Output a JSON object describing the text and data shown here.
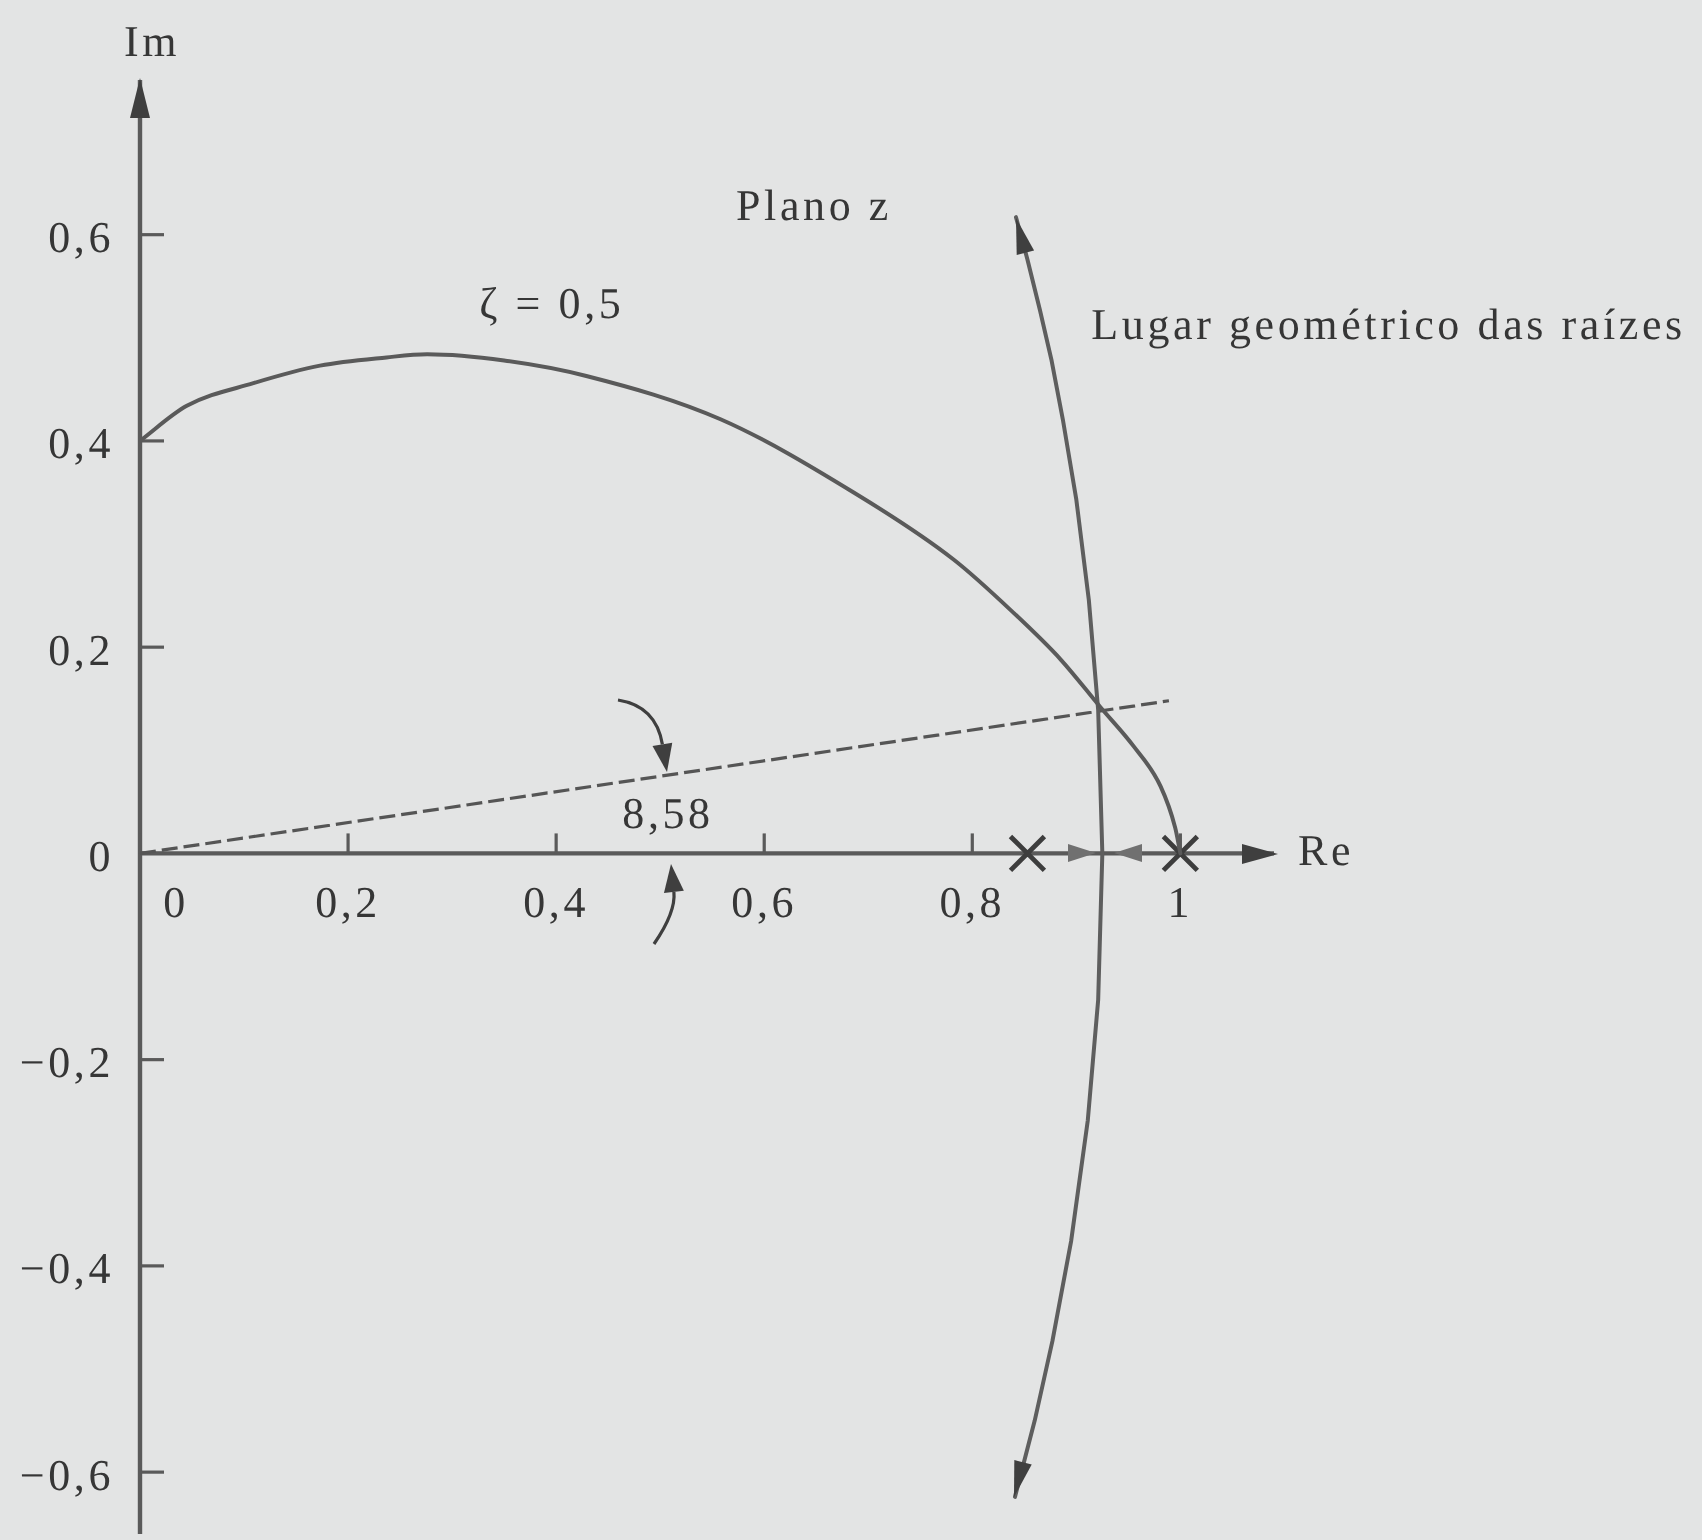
{
  "chart_data": {
    "type": "line",
    "xlabel": "Re",
    "ylabel": "Im",
    "xlim": [
      0,
      1.09
    ],
    "ylim": [
      -0.66,
      0.75
    ],
    "xticks": [
      0,
      {
        "value": 0.2,
        "label": "0,2"
      },
      {
        "value": 0.4,
        "label": "0,4"
      },
      {
        "value": 0.6,
        "label": "0,6"
      },
      {
        "value": 0.8,
        "label": "0,8"
      },
      1
    ],
    "yticks": [
      {
        "value": -0.6,
        "label": "−0,6"
      },
      {
        "value": -0.4,
        "label": "−0,4"
      },
      {
        "value": -0.2,
        "label": "−0,2"
      },
      0,
      {
        "value": 0.2,
        "label": "0,2"
      },
      {
        "value": 0.4,
        "label": "0,4"
      },
      {
        "value": 0.6,
        "label": "0,6"
      }
    ],
    "series": [
      {
        "name": "ζ = 0,5",
        "color": "#5a5a5a",
        "x": [
          0,
          0.045,
          0.109,
          0.173,
          0.237,
          0.276,
          0.35,
          0.429,
          0.558,
          0.686,
          0.782,
          0.84,
          0.885,
          0.923,
          0.955,
          0.981,
          0.995,
          1.0
        ],
        "values": [
          0.4,
          0.434,
          0.456,
          0.473,
          0.481,
          0.484,
          0.478,
          0.463,
          0.421,
          0.35,
          0.285,
          0.233,
          0.188,
          0.142,
          0.104,
          0.065,
          0.025,
          0.0
        ]
      },
      {
        "name": "Lugar geométrico das raízes",
        "color": "#5e5e5e",
        "x": [
          0.842,
          0.853,
          0.865,
          0.876,
          0.887,
          0.9,
          0.912,
          0.921,
          0.925,
          0.921,
          0.911,
          0.895,
          0.877,
          0.86,
          0.841
        ],
        "values": [
          0.617,
          0.576,
          0.527,
          0.479,
          0.421,
          0.343,
          0.246,
          0.139,
          0,
          -0.142,
          -0.259,
          -0.376,
          -0.473,
          -0.55,
          -0.624
        ]
      },
      {
        "line_style": "dashed",
        "color": "#555555",
        "x": [
          0,
          0.989
        ],
        "values": [
          0,
          0.148
        ]
      },
      {
        "type": "scatter",
        "marker": "cross",
        "color": "#3d3d3d",
        "x": [
          0.853,
          1.0
        ],
        "values": [
          0,
          0
        ]
      }
    ],
    "annotations": [
      "Plano z",
      "8,58"
    ]
  }
}
